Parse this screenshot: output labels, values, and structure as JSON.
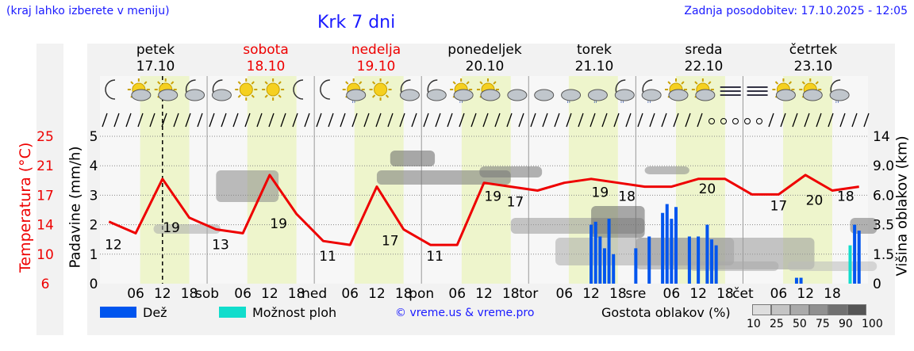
{
  "header": {
    "region_note": "(kraj lahko izberete v meniju)",
    "title": "Krk 7 dni",
    "updated": "Zadnja posodobitev: 17.10.2025 - 12:05"
  },
  "days": [
    {
      "name": "petek",
      "date": "17.10",
      "color": "#000000"
    },
    {
      "name": "sobota",
      "date": "18.10",
      "color": "#ee0000"
    },
    {
      "name": "nedelja",
      "date": "19.10",
      "color": "#ee0000"
    },
    {
      "name": "ponedeljek",
      "date": "20.10",
      "color": "#000000"
    },
    {
      "name": "torek",
      "date": "21.10",
      "color": "#000000"
    },
    {
      "name": "sreda",
      "date": "22.10",
      "color": "#000000"
    },
    {
      "name": "četrtek",
      "date": "23.10",
      "color": "#000000"
    }
  ],
  "axes": {
    "temp_label": "Temperatura (°C)",
    "temp_ticks": [
      "25",
      "21",
      "17",
      "14",
      "10",
      "6"
    ],
    "precip_label": "Padavine (mm/h)",
    "precip_ticks": [
      "5",
      "4",
      "3",
      "2",
      "1",
      "0"
    ],
    "cloud_label": "Višina oblakov (km)",
    "cloud_ticks": [
      "14",
      "9.0",
      "6.0",
      "3.5",
      "1.5",
      "0"
    ],
    "x_ticks": [
      "06",
      "12",
      "18",
      "sob",
      "06",
      "12",
      "18",
      "ned",
      "06",
      "12",
      "18",
      "pon",
      "06",
      "12",
      "18",
      "tor",
      "06",
      "12",
      "18",
      "sre",
      "06",
      "12",
      "18",
      "čet",
      "06",
      "12",
      "18"
    ]
  },
  "legend": {
    "rain": "Dež",
    "showers": "Možnost ploh",
    "copyright": "© vreme.us & vreme.pro",
    "cloud_density_title": "Gostota oblakov (%)",
    "cloud_density_levels": [
      "10",
      "25",
      "50",
      "75",
      "90",
      "100"
    ],
    "rain_color": "#0055ee",
    "showers_color": "#11ddcc"
  },
  "colors": {
    "temperature_line": "#ee0000",
    "daytime_band": "#eef5cc",
    "title_blue": "#1a1aff"
  },
  "icons": [
    "moon",
    "sun-cloud",
    "sun-cloud",
    "moon-cloud",
    "moon-cloud",
    "sun",
    "sun",
    "moon",
    "moon",
    "sun-cloud-rain",
    "sun",
    "moon-cloud",
    "moon-cloud",
    "sun-cloud-rain",
    "sun-cloud",
    "cloud",
    "cloud",
    "cloud-rain",
    "cloud-rain",
    "moon-cloud-rain",
    "moon-cloud-rain",
    "sun-cloud",
    "sun-cloud",
    "fog",
    "fog",
    "sun-cloud",
    "sun-cloud",
    "moon-cloud-rain"
  ],
  "chart_data": {
    "type": "line",
    "x": [
      0,
      6,
      12,
      18,
      24,
      30,
      36,
      42,
      48,
      54,
      60,
      66,
      72,
      78,
      84,
      90,
      96,
      102,
      108,
      114,
      120,
      126,
      132,
      138,
      144,
      150,
      156,
      162,
      168
    ],
    "series": [
      {
        "values": [
          14,
          12.5,
          19.5,
          14.5,
          13,
          12.5,
          20,
          15,
          11.5,
          11,
          18.5,
          13,
          11,
          11,
          19,
          18.5,
          18,
          19,
          19.5,
          19,
          18.5,
          18.5,
          19.5,
          19.5,
          17.5,
          17.5,
          20,
          18,
          18.5
        ]
      }
    ],
    "temp_labels": [
      {
        "x": 1,
        "v": "12"
      },
      {
        "x": 14,
        "v": "19"
      },
      {
        "x": 25,
        "v": "13"
      },
      {
        "x": 38,
        "v": "19"
      },
      {
        "x": 49,
        "v": "11"
      },
      {
        "x": 63,
        "v": "17"
      },
      {
        "x": 73,
        "v": "11"
      },
      {
        "x": 86,
        "v": "19"
      },
      {
        "x": 91,
        "v": "17"
      },
      {
        "x": 110,
        "v": "19"
      },
      {
        "x": 116,
        "v": "18"
      },
      {
        "x": 134,
        "v": "20"
      },
      {
        "x": 150,
        "v": "17"
      },
      {
        "x": 158,
        "v": "20"
      },
      {
        "x": 165,
        "v": "18"
      }
    ],
    "precip_bars": [
      {
        "t": 108,
        "v": 2.0,
        "kind": "rain"
      },
      {
        "t": 109,
        "v": 2.1,
        "kind": "rain"
      },
      {
        "t": 110,
        "v": 1.6,
        "kind": "rain"
      },
      {
        "t": 111,
        "v": 1.2,
        "kind": "rain"
      },
      {
        "t": 112,
        "v": 2.2,
        "kind": "rain"
      },
      {
        "t": 113,
        "v": 1.0,
        "kind": "rain"
      },
      {
        "t": 118,
        "v": 1.2,
        "kind": "rain"
      },
      {
        "t": 121,
        "v": 1.6,
        "kind": "rain"
      },
      {
        "t": 124,
        "v": 2.4,
        "kind": "rain"
      },
      {
        "t": 125,
        "v": 2.7,
        "kind": "rain"
      },
      {
        "t": 126,
        "v": 2.2,
        "kind": "rain"
      },
      {
        "t": 127,
        "v": 2.6,
        "kind": "rain"
      },
      {
        "t": 130,
        "v": 1.6,
        "kind": "rain"
      },
      {
        "t": 132,
        "v": 1.6,
        "kind": "rain"
      },
      {
        "t": 134,
        "v": 2.0,
        "kind": "rain"
      },
      {
        "t": 135,
        "v": 1.5,
        "kind": "rain"
      },
      {
        "t": 136,
        "v": 1.3,
        "kind": "rain"
      },
      {
        "t": 154,
        "v": 0.2,
        "kind": "rain"
      },
      {
        "t": 155,
        "v": 0.2,
        "kind": "rain"
      },
      {
        "t": 166,
        "v": 1.3,
        "kind": "showers"
      },
      {
        "t": 167,
        "v": 2.0,
        "kind": "rain"
      },
      {
        "t": 168,
        "v": 1.8,
        "kind": "rain"
      }
    ],
    "temp_range": [
      6,
      25
    ],
    "precip_range": [
      0,
      5
    ],
    "x_range_hours": [
      0,
      168
    ],
    "grid": true
  }
}
